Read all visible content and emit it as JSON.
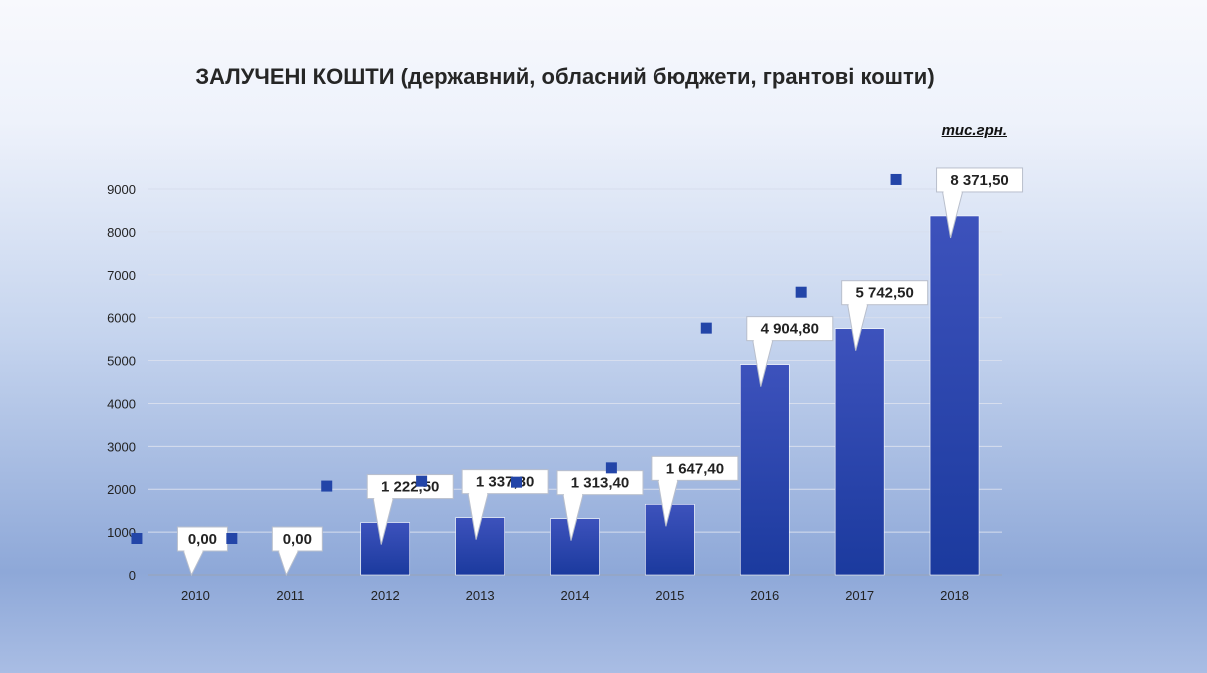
{
  "chart_data": {
    "type": "bar",
    "title": "ЗАЛУЧЕНІ КОШТИ (державний, обласний бюджети, грантові кошти)",
    "unit": "тис.грн.",
    "categories": [
      "2010",
      "2011",
      "2012",
      "2013",
      "2014",
      "2015",
      "2016",
      "2017",
      "2018"
    ],
    "values": [
      0.0,
      0.0,
      1222.5,
      1337.3,
      1313.4,
      1647.4,
      4904.8,
      5742.5,
      8371.5
    ],
    "data_labels": [
      "0,00",
      "0,00",
      "1 222,50",
      "1 337,30",
      "1 313,40",
      "1 647,40",
      "4 904,80",
      "5 742,50",
      "8 371,50"
    ],
    "ylim": [
      0,
      9000
    ],
    "yticks": [
      "0",
      "1000",
      "2000",
      "3000",
      "4000",
      "5000",
      "6000",
      "7000",
      "8000",
      "9000"
    ],
    "grid": true,
    "legend": "none",
    "colors": {
      "bar_top": "#3a4fb8",
      "bar_bottom": "#1a3aa0",
      "marker": "#2345a8"
    }
  }
}
